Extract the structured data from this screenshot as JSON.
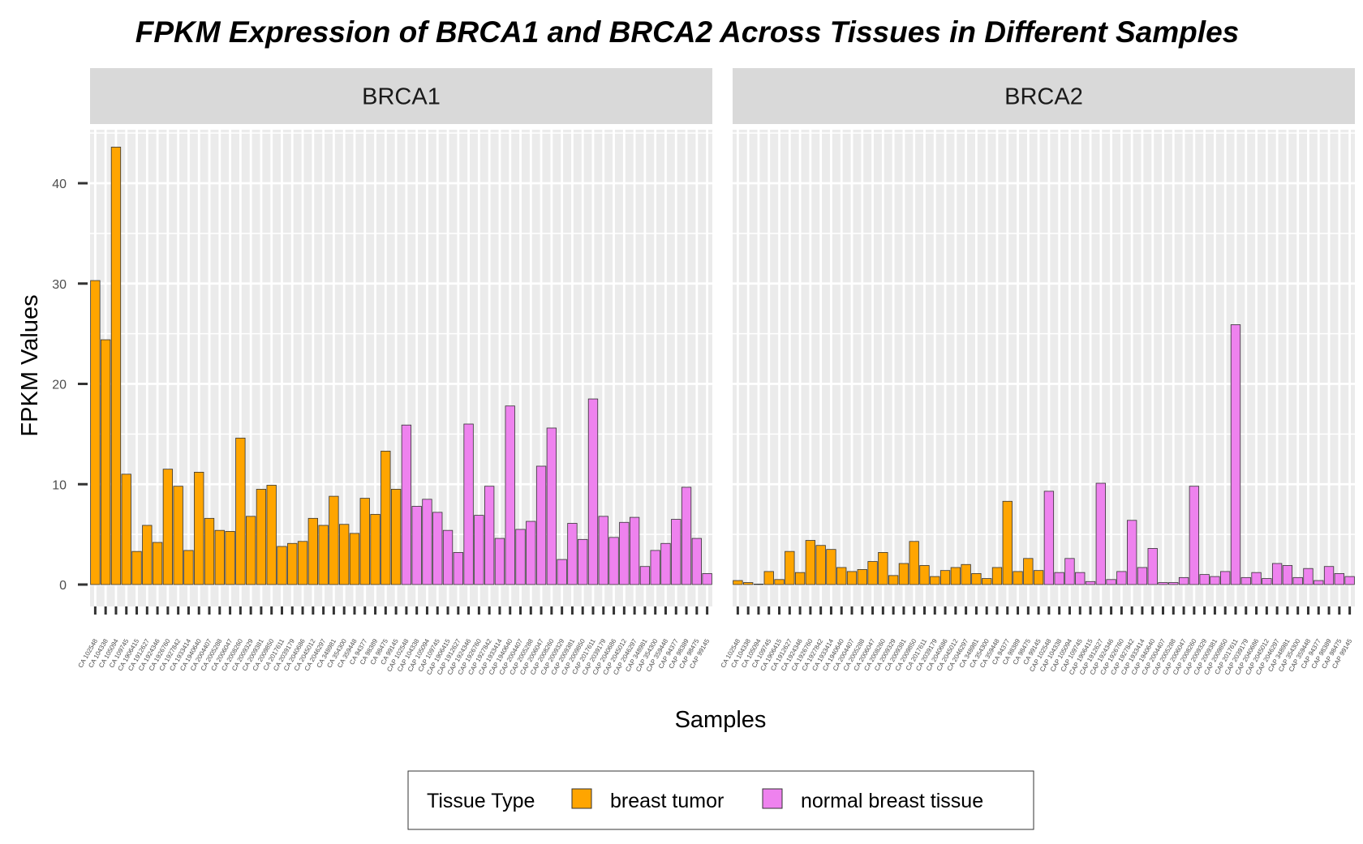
{
  "chart_data": {
    "type": "bar",
    "title": "FPKM Expression of BRCA1 and BRCA2 Across Tissues in Different Samples",
    "xlabel": "Samples",
    "ylabel": "FPKM Values",
    "ylim": [
      0,
      45
    ],
    "yticks": [
      0,
      10,
      20,
      30,
      40
    ],
    "grid": true,
    "legend": {
      "title": "Tissue Type",
      "position": "bottom",
      "entries": [
        {
          "label": "breast tumor",
          "color": "#FFA500"
        },
        {
          "label": "normal breast tissue",
          "color": "#EE82EE"
        }
      ]
    },
    "facets": [
      {
        "name": "BRCA1",
        "samples": [
          "CA 102548",
          "CA 104338",
          "CA 105094",
          "CA 109745",
          "CA 1906415",
          "CA 1912627",
          "CA 1924346",
          "CA 1926760",
          "CA 1927842",
          "CA 1933414",
          "CA 1940640",
          "CA 2004407",
          "CA 2005288",
          "CA 2006047",
          "CA 2008260",
          "CA 2009329",
          "CA 2009381",
          "CA 2009850",
          "CA 2017611",
          "CA 2039179",
          "CA 2040686",
          "CA 2045012",
          "CA 2046297",
          "CA 348981",
          "CA 354300",
          "CA 359448",
          "CA 94377",
          "CA 98389",
          "CA 98475",
          "CA 99145",
          "CAP 102548",
          "CAP 104338",
          "CAP 105094",
          "CAP 109745",
          "CAP 1906415",
          "CAP 1912627",
          "CAP 1924346",
          "CAP 1926760",
          "CAP 1927842",
          "CAP 1933414",
          "CAP 1940640",
          "CAP 2004407",
          "CAP 2005288",
          "CAP 2006047",
          "CAP 2008260",
          "CAP 2009329",
          "CAP 2009381",
          "CAP 2009850",
          "CAP 2017611",
          "CAP 2039179",
          "CAP 2040686",
          "CAP 2045012",
          "CAP 2046297",
          "CAP 348981",
          "CAP 354300",
          "CAP 359448",
          "CAP 94377",
          "CAP 98389",
          "CAP 98475",
          "CAP 99145"
        ],
        "values": [
          30.3,
          24.4,
          43.6,
          11.0,
          3.3,
          5.9,
          4.2,
          11.5,
          9.8,
          3.4,
          11.2,
          6.6,
          5.4,
          5.3,
          14.6,
          6.8,
          9.5,
          9.9,
          3.8,
          4.1,
          4.3,
          6.6,
          5.9,
          8.8,
          6.0,
          5.1,
          8.6,
          7.0,
          13.3,
          9.5,
          15.9,
          7.8,
          8.5,
          7.2,
          5.4,
          3.2,
          16.0,
          6.9,
          9.8,
          4.6,
          17.8,
          5.5,
          6.3,
          11.8,
          15.6,
          2.5,
          6.1,
          4.5,
          18.5,
          6.8,
          4.7,
          6.2,
          6.7,
          1.8,
          3.4,
          4.1,
          6.5,
          9.7,
          4.6,
          1.1
        ]
      },
      {
        "name": "BRCA2",
        "samples": [
          "CA 102548",
          "CA 104338",
          "CA 105094",
          "CA 109745",
          "CA 1906415",
          "CA 1912627",
          "CA 1924346",
          "CA 1926760",
          "CA 1927842",
          "CA 1933414",
          "CA 1940640",
          "CA 2004407",
          "CA 2005288",
          "CA 2006047",
          "CA 2008260",
          "CA 2009329",
          "CA 2009381",
          "CA 2009850",
          "CA 2017611",
          "CA 2039179",
          "CA 2040686",
          "CA 2045012",
          "CA 2046297",
          "CA 348981",
          "CA 354300",
          "CA 359448",
          "CA 94377",
          "CA 98389",
          "CA 98475",
          "CA 99145",
          "CAP 102548",
          "CAP 104338",
          "CAP 105094",
          "CAP 109745",
          "CAP 1906415",
          "CAP 1912627",
          "CAP 1924346",
          "CAP 1926760",
          "CAP 1927842",
          "CAP 1933414",
          "CAP 1940640",
          "CAP 2004407",
          "CAP 2005288",
          "CAP 2006047",
          "CAP 2008260",
          "CAP 2009329",
          "CAP 2009381",
          "CAP 2009850",
          "CAP 2017611",
          "CAP 2039179",
          "CAP 2040686",
          "CAP 2045012",
          "CAP 2046297",
          "CAP 348981",
          "CAP 354300",
          "CAP 359448",
          "CAP 94377",
          "CAP 98389",
          "CAP 98475",
          "CAP 99145"
        ],
        "values": [
          0.4,
          0.2,
          0.05,
          1.3,
          0.5,
          3.3,
          1.2,
          4.4,
          3.9,
          3.5,
          1.7,
          1.3,
          1.5,
          2.3,
          3.2,
          0.9,
          2.1,
          4.3,
          1.9,
          0.8,
          1.4,
          1.7,
          2.0,
          1.1,
          0.6,
          1.7,
          8.3,
          1.3,
          2.6,
          1.4,
          9.3,
          1.2,
          2.6,
          1.2,
          0.3,
          10.1,
          0.5,
          1.3,
          6.4,
          1.7,
          3.6,
          0.2,
          0.2,
          0.7,
          9.8,
          1.0,
          0.8,
          1.3,
          25.9,
          0.7,
          1.2,
          0.6,
          2.1,
          1.9,
          0.7,
          1.6,
          0.4,
          1.8,
          1.1,
          0.8
        ],
        "tissue": [
          "breast tumor",
          "breast tumor",
          "breast tumor",
          "breast tumor",
          "breast tumor",
          "breast tumor",
          "breast tumor",
          "breast tumor",
          "breast tumor",
          "breast tumor",
          "breast tumor",
          "breast tumor",
          "breast tumor",
          "breast tumor",
          "breast tumor",
          "breast tumor",
          "breast tumor",
          "breast tumor",
          "breast tumor",
          "breast tumor",
          "breast tumor",
          "breast tumor",
          "breast tumor",
          "breast tumor",
          "breast tumor",
          "breast tumor",
          "breast tumor",
          "breast tumor",
          "breast tumor",
          "breast tumor",
          "normal breast tissue",
          "normal breast tissue",
          "normal breast tissue",
          "normal breast tissue",
          "normal breast tissue",
          "normal breast tissue",
          "normal breast tissue",
          "normal breast tissue",
          "normal breast tissue",
          "normal breast tissue",
          "normal breast tissue",
          "normal breast tissue",
          "normal breast tissue",
          "normal breast tissue",
          "normal breast tissue",
          "normal breast tissue",
          "normal breast tissue",
          "normal breast tissue",
          "normal breast tissue",
          "normal breast tissue",
          "normal breast tissue",
          "normal breast tissue",
          "normal breast tissue",
          "normal breast tissue",
          "normal breast tissue",
          "normal breast tissue",
          "normal breast tissue",
          "normal breast tissue",
          "normal breast tissue",
          "normal breast tissue"
        ]
      }
    ]
  }
}
